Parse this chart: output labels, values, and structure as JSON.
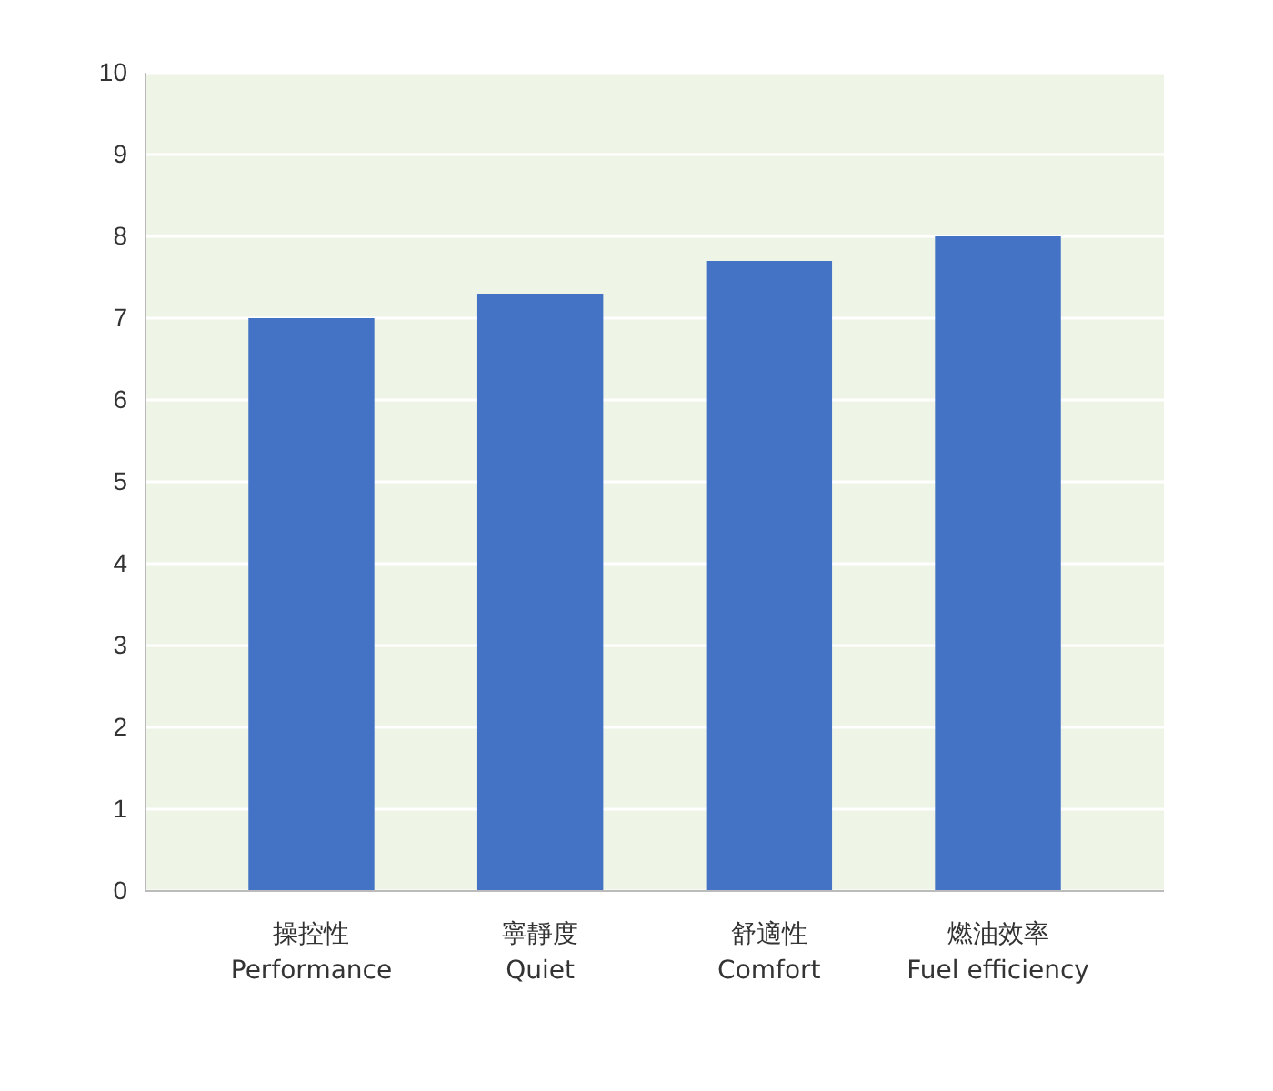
{
  "chart_data": {
    "type": "bar",
    "categories": [
      "操控性\nPerformance",
      "寧靜度\nQuiet",
      "舒適性\nComfort",
      "燃油效率\nFuel efficiency"
    ],
    "values": [
      7,
      7.3,
      7.7,
      8
    ],
    "color": "#4472c4",
    "ylim": [
      0,
      10
    ],
    "yticks": [
      0,
      1,
      2,
      3,
      4,
      5,
      6,
      7,
      8,
      9,
      10
    ],
    "grid": "y"
  }
}
